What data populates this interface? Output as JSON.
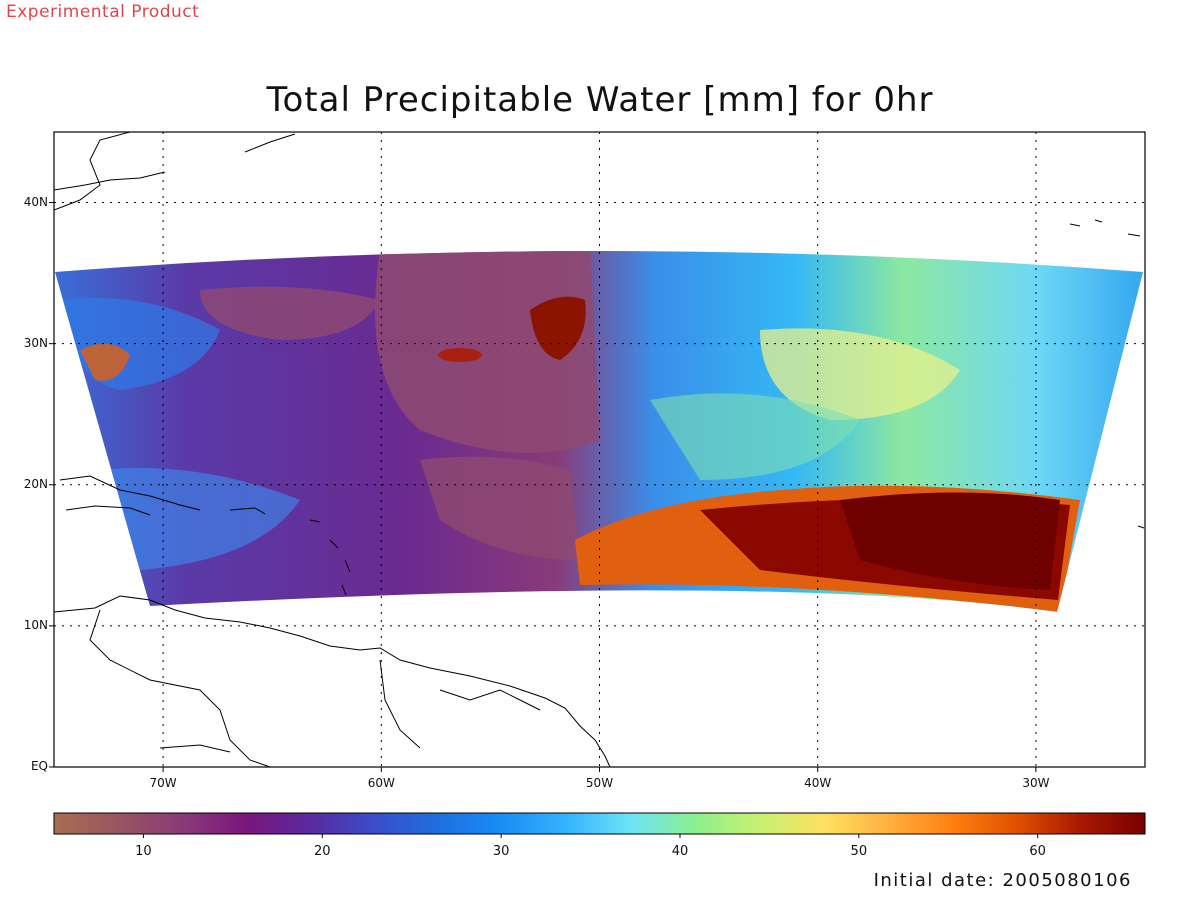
{
  "header": {
    "experimental": "Experimental Product",
    "title": "Total Precipitable Water [mm] for 0hr"
  },
  "map": {
    "lat_labels": [
      "40N",
      "30N",
      "20N",
      "10N",
      "EQ"
    ],
    "lon_labels": [
      "70W",
      "60W",
      "50W",
      "40W",
      "30W"
    ],
    "lat_values": [
      40,
      30,
      20,
      10,
      0
    ],
    "lon_values": [
      -70,
      -60,
      -50,
      -40,
      -30
    ],
    "lat_range": [
      0,
      45
    ],
    "lon_range": [
      -75,
      -25
    ],
    "grid": "dotted"
  },
  "colorbar": {
    "min": 5,
    "max": 66,
    "labels": [
      "10",
      "20",
      "30",
      "40",
      "50",
      "60"
    ],
    "label_values": [
      10,
      20,
      30,
      40,
      50,
      60
    ],
    "colors": [
      "#a86e50",
      "#9a5560",
      "#8a3a78",
      "#7a157e",
      "#5a2aa0",
      "#3a4ec8",
      "#1f6fe0",
      "#1a8ef5",
      "#35b4ff",
      "#6ee4f5",
      "#8cf08c",
      "#c8f070",
      "#ffe060",
      "#ffb040",
      "#ff8010",
      "#e05000",
      "#a81800",
      "#7a0000"
    ]
  },
  "footer": {
    "initial_date": "Initial date: 2005080106"
  }
}
